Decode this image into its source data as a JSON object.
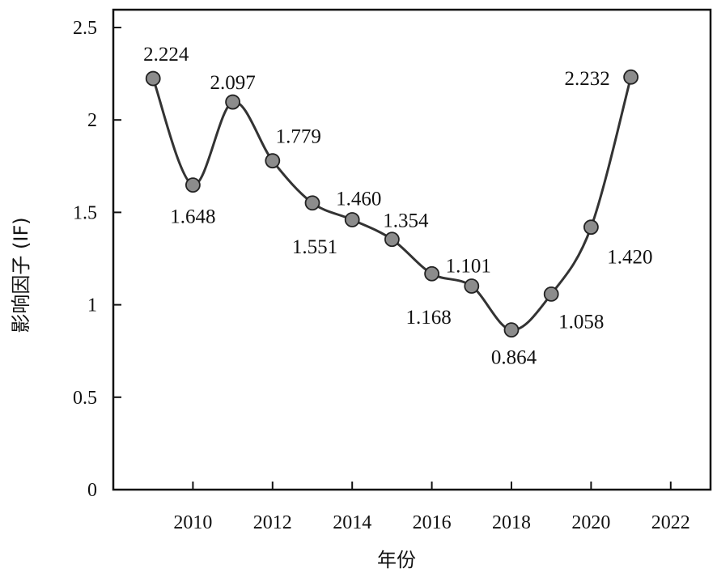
{
  "chart_data": {
    "type": "line",
    "xlabel": "年份",
    "ylabel": "影响因子 (IF)",
    "xlim": [
      2008,
      2023
    ],
    "ylim": [
      0,
      2.5
    ],
    "x_ticks": [
      2010,
      2012,
      2014,
      2016,
      2018,
      2020,
      2022
    ],
    "x_tick_labels": [
      "2010",
      "2012",
      "2014",
      "2016",
      "2018",
      "2020",
      "2022"
    ],
    "y_ticks": [
      0,
      0.5,
      1,
      1.5,
      2,
      2.5
    ],
    "y_tick_labels": [
      "0",
      "0.5",
      "1",
      "1.5",
      "2",
      "2.5"
    ],
    "grid": false,
    "marker": "circle",
    "line_color": "#333333",
    "marker_color": "#8c8c8c",
    "series": [
      {
        "x": [
          2009,
          2010,
          2011,
          2012,
          2013,
          2014,
          2015,
          2016,
          2017,
          2018,
          2019,
          2020,
          2021
        ],
        "y": [
          2.224,
          1.648,
          2.097,
          1.779,
          1.551,
          1.46,
          1.354,
          1.168,
          1.101,
          0.864,
          1.058,
          1.42,
          2.232
        ],
        "labels": [
          "2.224",
          "1.648",
          "2.097",
          "1.779",
          "1.551",
          "1.460",
          "1.354",
          "1.168",
          "1.101",
          "0.864",
          "1.058",
          "1.420",
          "2.232"
        ]
      }
    ]
  }
}
